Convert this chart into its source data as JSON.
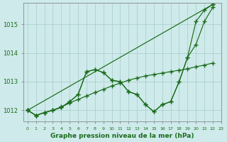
{
  "title": "Graphe pression niveau de la mer (hPa)",
  "background_color": "#ceeaea",
  "grid_color": "#aed0d0",
  "line_color": "#1a6b1a",
  "xlim": [
    -0.5,
    23
  ],
  "ylim": [
    1011.6,
    1015.75
  ],
  "yticks": [
    1012,
    1013,
    1014,
    1015
  ],
  "xtick_labels": [
    "0",
    "1",
    "2",
    "3",
    "4",
    "5",
    "6",
    "7",
    "8",
    "9",
    "10",
    "11",
    "12",
    "13",
    "14",
    "15",
    "16",
    "17",
    "18",
    "19",
    "20",
    "21",
    "22",
    "23"
  ],
  "series": [
    {
      "x": [
        0,
        1,
        2,
        3,
        4,
        5,
        6,
        7,
        8,
        9,
        10,
        11,
        12,
        13,
        14,
        15,
        16,
        17,
        18,
        19,
        20,
        21,
        22
      ],
      "y": [
        1012.0,
        1011.82,
        1011.92,
        1012.0,
        1012.1,
        1012.3,
        1012.55,
        1013.35,
        1013.42,
        1013.32,
        1013.05,
        1013.0,
        1012.65,
        1012.55,
        1012.2,
        1011.95,
        1012.2,
        1012.3,
        1013.0,
        1013.85,
        1015.1,
        1015.5,
        1015.7
      ]
    },
    {
      "x": [
        0,
        1,
        2,
        3,
        4,
        5,
        6,
        7,
        8,
        9,
        10,
        11,
        12,
        13,
        14,
        15,
        16,
        17,
        18,
        19,
        20,
        21,
        22
      ],
      "y": [
        1012.0,
        1011.82,
        1011.92,
        1012.0,
        1012.1,
        1012.3,
        1012.55,
        1013.35,
        1013.42,
        1013.32,
        1013.05,
        1013.0,
        1012.65,
        1012.55,
        1012.2,
        1011.95,
        1012.2,
        1012.3,
        1013.0,
        1013.85,
        1014.3,
        1015.1,
        1015.6
      ]
    },
    {
      "x": [
        0,
        1,
        2,
        3,
        4,
        5,
        6,
        7,
        8,
        9,
        10,
        11,
        12,
        13,
        14,
        15,
        16,
        17,
        18,
        19,
        20,
        21,
        22
      ],
      "y": [
        1012.0,
        1011.82,
        1011.92,
        1012.0,
        1012.12,
        1012.28,
        1012.42,
        1012.55,
        1012.68,
        1012.78,
        1012.9,
        1013.0,
        1013.08,
        1013.15,
        1013.2,
        1013.25,
        1013.3,
        1013.35,
        1013.4,
        1013.45,
        1013.52,
        1013.58,
        1013.65
      ]
    },
    {
      "x": [
        0,
        1,
        2,
        3,
        4,
        5,
        15,
        16,
        17,
        18,
        19,
        20,
        21,
        22
      ],
      "y": [
        1012.0,
        1011.82,
        1011.92,
        1012.0,
        1012.1,
        1012.3,
        1011.95,
        1012.2,
        1012.3,
        1013.0,
        1013.85,
        1014.3,
        1015.1,
        1015.6
      ]
    }
  ]
}
